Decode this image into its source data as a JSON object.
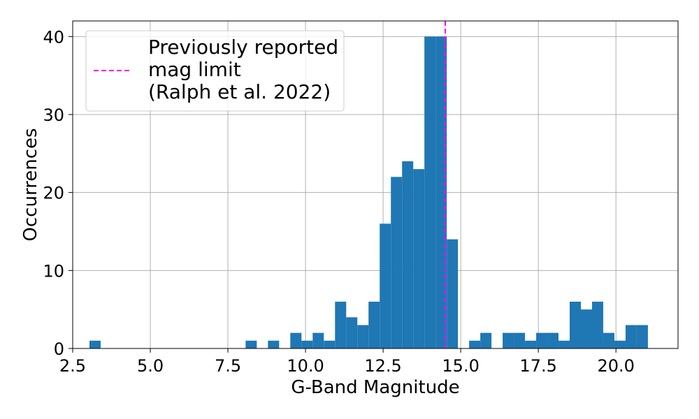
{
  "chart_data": {
    "type": "bar",
    "subtype": "histogram",
    "xlabel": "G-Band Magnitude",
    "ylabel": "Occurrences",
    "xlim": [
      2.5,
      22.0
    ],
    "ylim": [
      0,
      42
    ],
    "grid": true,
    "bar_color": "#1f77b4",
    "xticks": [
      {
        "value": 2.5,
        "label": "2.5"
      },
      {
        "value": 5.0,
        "label": "5.0"
      },
      {
        "value": 7.5,
        "label": "7.5"
      },
      {
        "value": 10.0,
        "label": "10.0"
      },
      {
        "value": 12.5,
        "label": "12.5"
      },
      {
        "value": 15.0,
        "label": "15.0"
      },
      {
        "value": 17.5,
        "label": "17.5"
      },
      {
        "value": 20.0,
        "label": "20.0"
      }
    ],
    "yticks": [
      {
        "value": 0,
        "label": "0"
      },
      {
        "value": 10,
        "label": "10"
      },
      {
        "value": 20,
        "label": "20"
      },
      {
        "value": 30,
        "label": "30"
      },
      {
        "value": 40,
        "label": "40"
      }
    ],
    "bins": [
      {
        "start": 3.04,
        "end": 3.4,
        "count": 1
      },
      {
        "start": 8.07,
        "end": 8.43,
        "count": 1
      },
      {
        "start": 8.79,
        "end": 9.15,
        "count": 1
      },
      {
        "start": 9.51,
        "end": 9.87,
        "count": 2
      },
      {
        "start": 9.87,
        "end": 10.23,
        "count": 1
      },
      {
        "start": 10.23,
        "end": 10.59,
        "count": 2
      },
      {
        "start": 10.59,
        "end": 10.95,
        "count": 1
      },
      {
        "start": 10.95,
        "end": 11.31,
        "count": 6
      },
      {
        "start": 11.31,
        "end": 11.67,
        "count": 4
      },
      {
        "start": 11.67,
        "end": 12.03,
        "count": 3
      },
      {
        "start": 12.03,
        "end": 12.39,
        "count": 6
      },
      {
        "start": 12.39,
        "end": 12.75,
        "count": 16
      },
      {
        "start": 12.75,
        "end": 13.11,
        "count": 22
      },
      {
        "start": 13.11,
        "end": 13.47,
        "count": 24
      },
      {
        "start": 13.47,
        "end": 13.83,
        "count": 23
      },
      {
        "start": 13.83,
        "end": 14.19,
        "count": 40
      },
      {
        "start": 14.19,
        "end": 14.55,
        "count": 40
      },
      {
        "start": 14.55,
        "end": 14.91,
        "count": 14
      },
      {
        "start": 15.27,
        "end": 15.63,
        "count": 1
      },
      {
        "start": 15.63,
        "end": 15.99,
        "count": 2
      },
      {
        "start": 16.35,
        "end": 16.71,
        "count": 2
      },
      {
        "start": 16.71,
        "end": 17.07,
        "count": 2
      },
      {
        "start": 17.07,
        "end": 17.43,
        "count": 1
      },
      {
        "start": 17.43,
        "end": 17.79,
        "count": 2
      },
      {
        "start": 17.79,
        "end": 18.15,
        "count": 2
      },
      {
        "start": 18.15,
        "end": 18.51,
        "count": 1
      },
      {
        "start": 18.51,
        "end": 18.87,
        "count": 6
      },
      {
        "start": 18.87,
        "end": 19.23,
        "count": 5
      },
      {
        "start": 19.23,
        "end": 19.59,
        "count": 6
      },
      {
        "start": 19.59,
        "end": 19.95,
        "count": 2
      },
      {
        "start": 19.95,
        "end": 20.31,
        "count": 1
      },
      {
        "start": 20.31,
        "end": 20.67,
        "count": 3
      },
      {
        "start": 20.67,
        "end": 21.03,
        "count": 3
      }
    ],
    "reference_line": {
      "x": 14.5,
      "color": "#ff00ff",
      "style": "dashed"
    },
    "legend": {
      "placement": "upper-left",
      "entries": [
        {
          "lines": [
            "Previously reported",
            "mag limit",
            "(Ralph et al. 2022)"
          ],
          "color": "#ff00ff",
          "style": "dashed"
        }
      ]
    }
  }
}
